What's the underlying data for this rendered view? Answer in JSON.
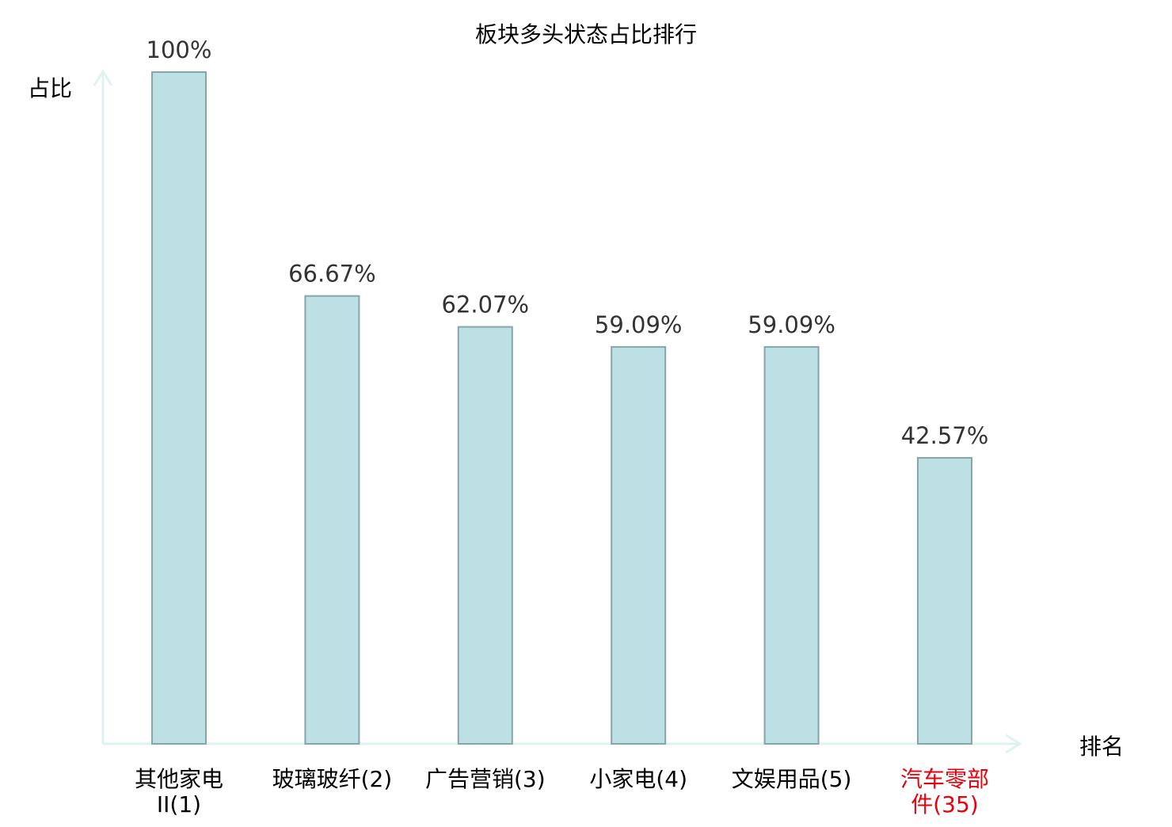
{
  "chart_data": {
    "type": "bar",
    "title": "板块多头状态占比排行",
    "ylabel": "占比",
    "xlabel": "排名",
    "categories": [
      "其他家电II(1)",
      "玻璃玻纤(2)",
      "广告营销(3)",
      "小家电(4)",
      "文娱用品(5)",
      "汽车零部件(35)"
    ],
    "values": [
      100,
      66.67,
      62.07,
      59.09,
      59.09,
      42.57
    ],
    "data_labels": [
      "100%",
      "66.67%",
      "62.07%",
      "59.09%",
      "59.09%",
      "42.57%"
    ],
    "highlight_index": 5,
    "ylim": [
      0,
      100
    ],
    "grid": false,
    "colors": {
      "bar_fill": "#bce0e3",
      "bar_stroke": "#86a6a8",
      "axis": "#dff2f0",
      "label": "#000000",
      "highlight_label": "#e8000b",
      "data_label": "#333333"
    }
  }
}
